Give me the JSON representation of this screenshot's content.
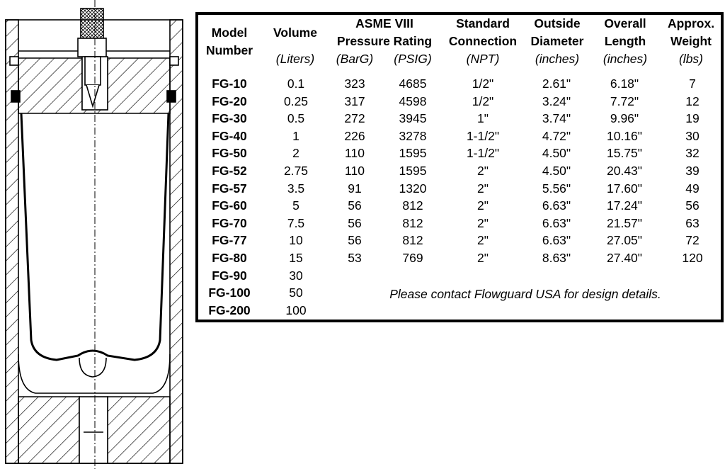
{
  "headers": {
    "model": [
      "Model",
      "Number"
    ],
    "volume": [
      "Volume",
      "(Liters)"
    ],
    "pressure_group": [
      "ASME VIII",
      "Pressure Rating"
    ],
    "barg": "(BarG)",
    "psig": "(PSIG)",
    "connection": [
      "Standard",
      "Connection",
      "(NPT)"
    ],
    "diameter": [
      "Outside",
      "Diameter",
      "(inches)"
    ],
    "length": [
      "Overall",
      "Length",
      "(inches)"
    ],
    "weight": [
      "Approx.",
      "Weight",
      "(lbs)"
    ]
  },
  "rows": [
    [
      "FG-10",
      "0.1",
      "323",
      "4685",
      "1/2\"",
      "2.61\"",
      "6.18\"",
      "7"
    ],
    [
      "FG-20",
      "0.25",
      "317",
      "4598",
      "1/2\"",
      "3.24\"",
      "7.72\"",
      "12"
    ],
    [
      "FG-30",
      "0.5",
      "272",
      "3945",
      "1\"",
      "3.74\"",
      "9.96\"",
      "19"
    ],
    [
      "FG-40",
      "1",
      "226",
      "3278",
      "1-1/2\"",
      "4.72\"",
      "10.16\"",
      "30"
    ],
    [
      "FG-50",
      "2",
      "110",
      "1595",
      "1-1/2\"",
      "4.50\"",
      "15.75\"",
      "32"
    ],
    [
      "FG-52",
      "2.75",
      "110",
      "1595",
      "2\"",
      "4.50\"",
      "20.43\"",
      "39"
    ],
    [
      "FG-57",
      "3.5",
      "91",
      "1320",
      "2\"",
      "5.56\"",
      "17.60\"",
      "49"
    ],
    [
      "FG-60",
      "5",
      "56",
      "812",
      "2\"",
      "6.63\"",
      "17.24\"",
      "56"
    ],
    [
      "FG-70",
      "7.5",
      "56",
      "812",
      "2\"",
      "6.63\"",
      "21.57\"",
      "63"
    ],
    [
      "FG-77",
      "10",
      "56",
      "812",
      "2\"",
      "6.63\"",
      "27.05\"",
      "72"
    ],
    [
      "FG-80",
      "15",
      "53",
      "769",
      "2\"",
      "8.63\"",
      "27.40\"",
      "120"
    ],
    [
      "FG-90",
      "30"
    ],
    [
      "FG-100",
      "50"
    ],
    [
      "FG-200",
      "100"
    ]
  ],
  "note": "Please contact Flowguard USA for design details."
}
